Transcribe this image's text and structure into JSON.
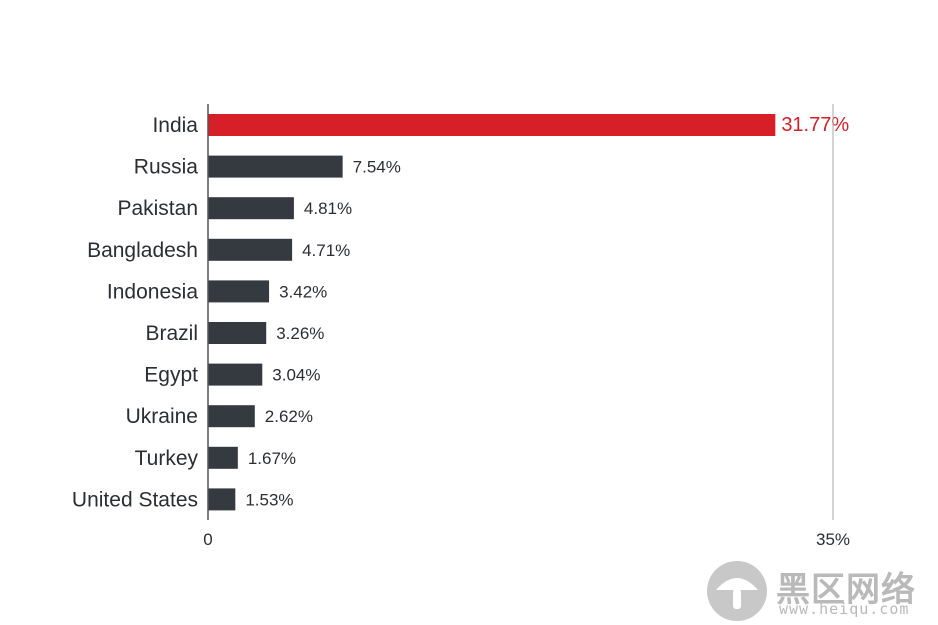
{
  "chart_data": {
    "type": "bar",
    "orientation": "horizontal",
    "categories": [
      "India",
      "Russia",
      "Pakistan",
      "Bangladesh",
      "Indonesia",
      "Brazil",
      "Egypt",
      "Ukraine",
      "Turkey",
      "United States"
    ],
    "values": [
      31.77,
      7.54,
      4.81,
      4.71,
      3.42,
      3.26,
      3.04,
      2.62,
      1.67,
      1.53
    ],
    "value_labels": [
      "31.77%",
      "7.54%",
      "4.81%",
      "4.71%",
      "3.42%",
      "3.26%",
      "3.04%",
      "2.62%",
      "1.67%",
      "1.53%"
    ],
    "xlim": [
      0,
      35
    ],
    "x_ticks": [
      "0",
      "35%"
    ],
    "grid": false,
    "highlight_index": 0,
    "colors": {
      "highlight": "#d71f27",
      "bar": "#353a40",
      "axis": "#555555",
      "reference_line": "#aaaaaa",
      "text": "#2b2e33"
    }
  },
  "watermark": {
    "title": "黑区网络",
    "url": "www.heiqu.com",
    "icon": "mushroom-logo-icon"
  }
}
